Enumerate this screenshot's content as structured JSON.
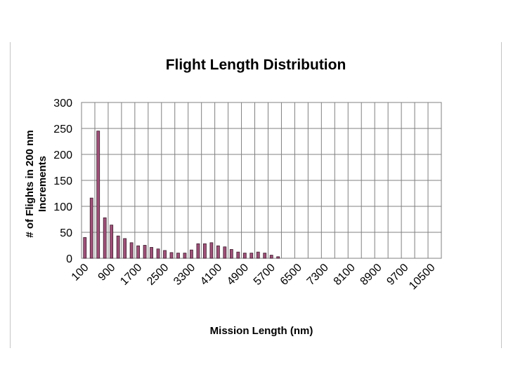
{
  "chart_data": {
    "type": "bar",
    "title": "Flight Length Distribution",
    "xlabel": "Mission Length (nm)",
    "ylabel_lines": [
      "# of Flights in 200 nm",
      "Increments"
    ],
    "ylim": [
      0,
      300
    ],
    "yticks": [
      0,
      50,
      100,
      150,
      200,
      250,
      300
    ],
    "xtick_labels": [
      "100",
      "900",
      "1700",
      "2500",
      "3300",
      "4100",
      "4900",
      "5700",
      "6500",
      "7300",
      "8100",
      "8900",
      "9700",
      "10500"
    ],
    "grid": "both",
    "legend": "none",
    "bar_color": "#a0527a",
    "bar_edge_color": "#3a1a2a",
    "categories": [
      "100",
      "300",
      "500",
      "700",
      "900",
      "1100",
      "1300",
      "1500",
      "1700",
      "1900",
      "2100",
      "2300",
      "2500",
      "2700",
      "2900",
      "3100",
      "3300",
      "3500",
      "3700",
      "3900",
      "4100",
      "4300",
      "4500",
      "4700",
      "4900",
      "5100",
      "5300",
      "5500",
      "5700",
      "5900",
      "6100",
      "6300",
      "6500",
      "6700",
      "6900",
      "7100",
      "7300",
      "7500",
      "7700",
      "7900",
      "8100",
      "8300",
      "8500",
      "8700",
      "8900",
      "9100",
      "9300",
      "9500",
      "9700",
      "9900",
      "10100",
      "10300",
      "10500",
      "10700"
    ],
    "values": [
      40,
      116,
      245,
      78,
      64,
      43,
      38,
      30,
      24,
      25,
      21,
      18,
      15,
      11,
      10,
      10,
      16,
      28,
      28,
      30,
      24,
      22,
      17,
      12,
      10,
      10,
      12,
      10,
      6,
      3,
      0,
      0,
      0,
      0,
      0,
      0,
      0,
      0,
      0,
      0,
      0,
      0,
      0,
      0,
      0,
      0,
      0,
      0,
      0,
      0,
      0,
      0,
      0,
      0
    ]
  }
}
